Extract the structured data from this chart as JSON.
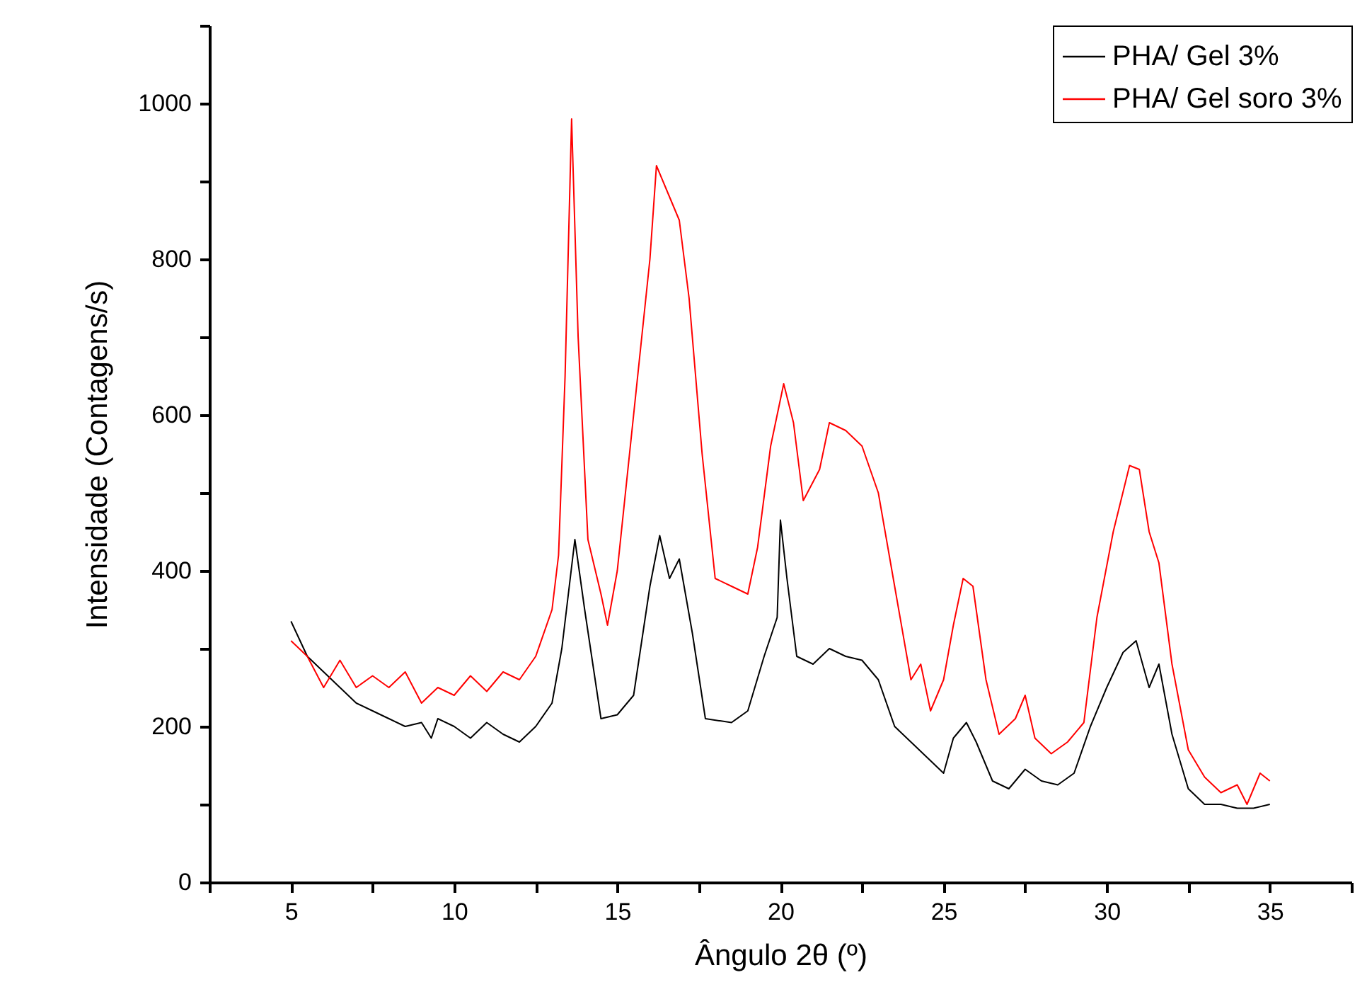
{
  "chart_data": {
    "type": "line",
    "xlabel": "Ângulo 2θ   (º)",
    "ylabel": "Intensidade (Contagens/s)",
    "xlim": [
      2.5,
      37.5
    ],
    "ylim": [
      0,
      1100
    ],
    "xticks": [
      {
        "value": 2.5,
        "label": null
      },
      5,
      {
        "value": 7.5,
        "label": null
      },
      10,
      {
        "value": 12.5,
        "label": null
      },
      15,
      {
        "value": 17.5,
        "label": null
      },
      20,
      {
        "value": 22.5,
        "label": null
      },
      25,
      {
        "value": 27.5,
        "label": null
      },
      30,
      {
        "value": 32.5,
        "label": null
      },
      35,
      {
        "value": 37.5,
        "label": null
      }
    ],
    "yticks": [
      0,
      {
        "value": 100,
        "label": null
      },
      200,
      {
        "value": 300,
        "label": null
      },
      400,
      {
        "value": 500,
        "label": null
      },
      600,
      {
        "value": 700,
        "label": null
      },
      800,
      {
        "value": 900,
        "label": null
      },
      1000,
      {
        "value": 1100,
        "label": null
      }
    ],
    "grid": false,
    "legend": "top right",
    "marker": "none",
    "line_style": "solid",
    "series": [
      {
        "name": "PHA/ Gel 3%",
        "color": "#000000",
        "x": [
          5.0,
          5.5,
          6,
          6.5,
          7,
          7.5,
          8,
          8.5,
          9,
          9.3,
          9.5,
          10,
          10.5,
          11,
          11.5,
          12,
          12.5,
          13,
          13.3,
          13.7,
          14,
          14.5,
          15,
          15.5,
          16,
          16.3,
          16.6,
          16.9,
          17.3,
          17.7,
          18.5,
          19,
          19.5,
          19.9,
          20.0,
          20.2,
          20.5,
          21,
          21.5,
          22,
          22.5,
          23,
          23.5,
          24,
          24.5,
          25,
          25.3,
          25.7,
          26,
          26.5,
          27,
          27.5,
          28,
          28.5,
          29,
          29.5,
          30,
          30.5,
          30.9,
          31.3,
          31.6,
          32,
          32.5,
          33,
          33.5,
          34,
          34.5,
          35
        ],
        "values": [
          335,
          290,
          270,
          250,
          230,
          220,
          210,
          200,
          205,
          185,
          210,
          200,
          185,
          205,
          190,
          180,
          200,
          230,
          300,
          440,
          350,
          210,
          215,
          240,
          380,
          445,
          390,
          415,
          320,
          210,
          205,
          220,
          290,
          340,
          465,
          390,
          290,
          280,
          300,
          290,
          285,
          260,
          200,
          180,
          160,
          140,
          185,
          205,
          180,
          130,
          120,
          145,
          130,
          125,
          140,
          200,
          250,
          295,
          310,
          250,
          280,
          190,
          120,
          100,
          100,
          95,
          95,
          100
        ]
      },
      {
        "name": "PHA/ Gel soro 3%",
        "color": "#ff0000",
        "x": [
          5.0,
          5.5,
          6,
          6.5,
          7,
          7.5,
          8,
          8.5,
          9,
          9.5,
          10,
          10.5,
          11,
          11.5,
          12,
          12.5,
          13,
          13.2,
          13.4,
          13.6,
          13.8,
          14.1,
          14.5,
          14.7,
          15,
          15.5,
          16,
          16.2,
          16.5,
          16.9,
          17.2,
          17.6,
          18,
          18.5,
          19,
          19.3,
          19.7,
          20.1,
          20.4,
          20.7,
          21.2,
          21.5,
          22,
          22.5,
          23,
          23.5,
          24,
          24.3,
          24.6,
          25,
          25.3,
          25.6,
          25.9,
          26.3,
          26.7,
          27.2,
          27.5,
          27.8,
          28.3,
          28.8,
          29.3,
          29.7,
          30.2,
          30.7,
          31,
          31.3,
          31.6,
          32,
          32.5,
          33,
          33.5,
          34,
          34.3,
          34.7,
          35
        ],
        "values": [
          310,
          290,
          250,
          285,
          250,
          265,
          250,
          270,
          230,
          250,
          240,
          265,
          245,
          270,
          260,
          290,
          350,
          420,
          650,
          980,
          700,
          440,
          370,
          330,
          400,
          600,
          800,
          920,
          890,
          850,
          750,
          550,
          390,
          380,
          370,
          430,
          560,
          640,
          590,
          490,
          530,
          590,
          580,
          560,
          500,
          380,
          260,
          280,
          220,
          260,
          330,
          390,
          380,
          260,
          190,
          210,
          240,
          185,
          165,
          180,
          205,
          340,
          450,
          535,
          530,
          450,
          410,
          280,
          170,
          135,
          115,
          125,
          100,
          140,
          130
        ]
      }
    ]
  }
}
